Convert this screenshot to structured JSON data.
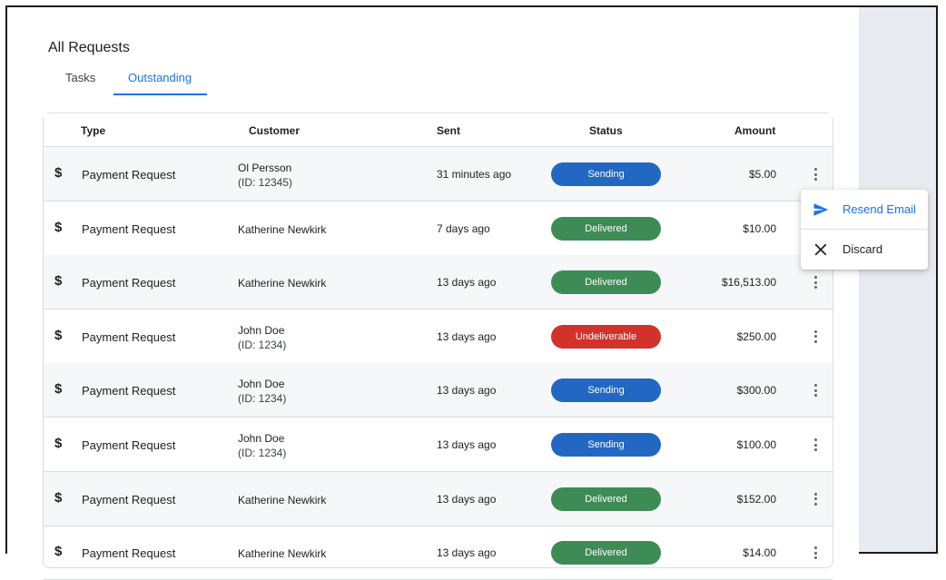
{
  "page": {
    "title": "All Requests"
  },
  "tabs": [
    {
      "label": "Tasks",
      "active": false
    },
    {
      "label": "Outstanding",
      "active": true
    }
  ],
  "table": {
    "columns": [
      "Type",
      "Customer",
      "Sent",
      "Status",
      "Amount"
    ],
    "rows": [
      {
        "type": "Payment Request",
        "customer_name": "Ol Persson",
        "customer_id": "(ID: 12345)",
        "sent": "31 minutes ago",
        "status": "Sending",
        "amount": "$5.00"
      },
      {
        "type": "Payment Request",
        "customer_name": "Katherine Newkirk",
        "customer_id": "",
        "sent": "7 days ago",
        "status": "Delivered",
        "amount": "$10.00"
      },
      {
        "type": "Payment Request",
        "customer_name": "Katherine Newkirk",
        "customer_id": "",
        "sent": "13 days ago",
        "status": "Delivered",
        "amount": "$16,513.00"
      },
      {
        "type": "Payment Request",
        "customer_name": "John Doe",
        "customer_id": "(ID: 1234)",
        "sent": "13 days ago",
        "status": "Undeliverable",
        "amount": "$250.00"
      },
      {
        "type": "Payment Request",
        "customer_name": "John Doe",
        "customer_id": "(ID: 1234)",
        "sent": "13 days ago",
        "status": "Sending",
        "amount": "$300.00"
      },
      {
        "type": "Payment Request",
        "customer_name": "John Doe",
        "customer_id": "(ID: 1234)",
        "sent": "13 days ago",
        "status": "Sending",
        "amount": "$100.00"
      },
      {
        "type": "Payment Request",
        "customer_name": "Katherine Newkirk",
        "customer_id": "",
        "sent": "13 days ago",
        "status": "Delivered",
        "amount": "$152.00"
      },
      {
        "type": "Payment Request",
        "customer_name": "Katherine Newkirk",
        "customer_id": "",
        "sent": "13 days ago",
        "status": "Delivered",
        "amount": "$14.00"
      }
    ]
  },
  "status_colors": {
    "Sending": "#2268c2",
    "Delivered": "#3d8c55",
    "Undeliverable": "#d23229"
  },
  "context_menu": {
    "items": [
      {
        "label": "Resend Email",
        "icon": "send-icon",
        "color": "#1a73e8"
      },
      {
        "label": "Discard",
        "icon": "close-icon",
        "color": "#202124"
      }
    ]
  },
  "colors": {
    "accent": "#1a73e8",
    "row_alt": "#f6f7f9",
    "side_panel": "#e8ecf0"
  }
}
